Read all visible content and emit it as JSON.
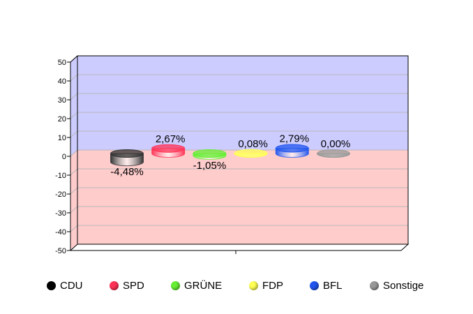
{
  "chart_data": {
    "type": "bar",
    "title": "",
    "xlabel": "",
    "ylabel": "",
    "ylim": [
      -50,
      50
    ],
    "yticks": [
      "50",
      "40",
      "30",
      "20",
      "10",
      "0",
      "-10",
      "-20",
      "-30",
      "-40",
      "-50"
    ],
    "grid": true,
    "legend_position": "bottom",
    "categories": [
      "CDU",
      "SPD",
      "GRÜNE",
      "FDP",
      "BFL",
      "Sonstige"
    ],
    "values": [
      -4.48,
      2.67,
      -1.05,
      0.08,
      2.79,
      0.0
    ],
    "labels": [
      "-4,48%",
      "2,67%",
      "-1,05%",
      "0,08%",
      "2,79%",
      "0,00%"
    ],
    "colors": [
      "#333333",
      "#ff3355",
      "#66ee33",
      "#ffff55",
      "#2255ee",
      "#999999"
    ],
    "background": {
      "positive": "#ccccff",
      "negative": "#ffcccc"
    }
  }
}
